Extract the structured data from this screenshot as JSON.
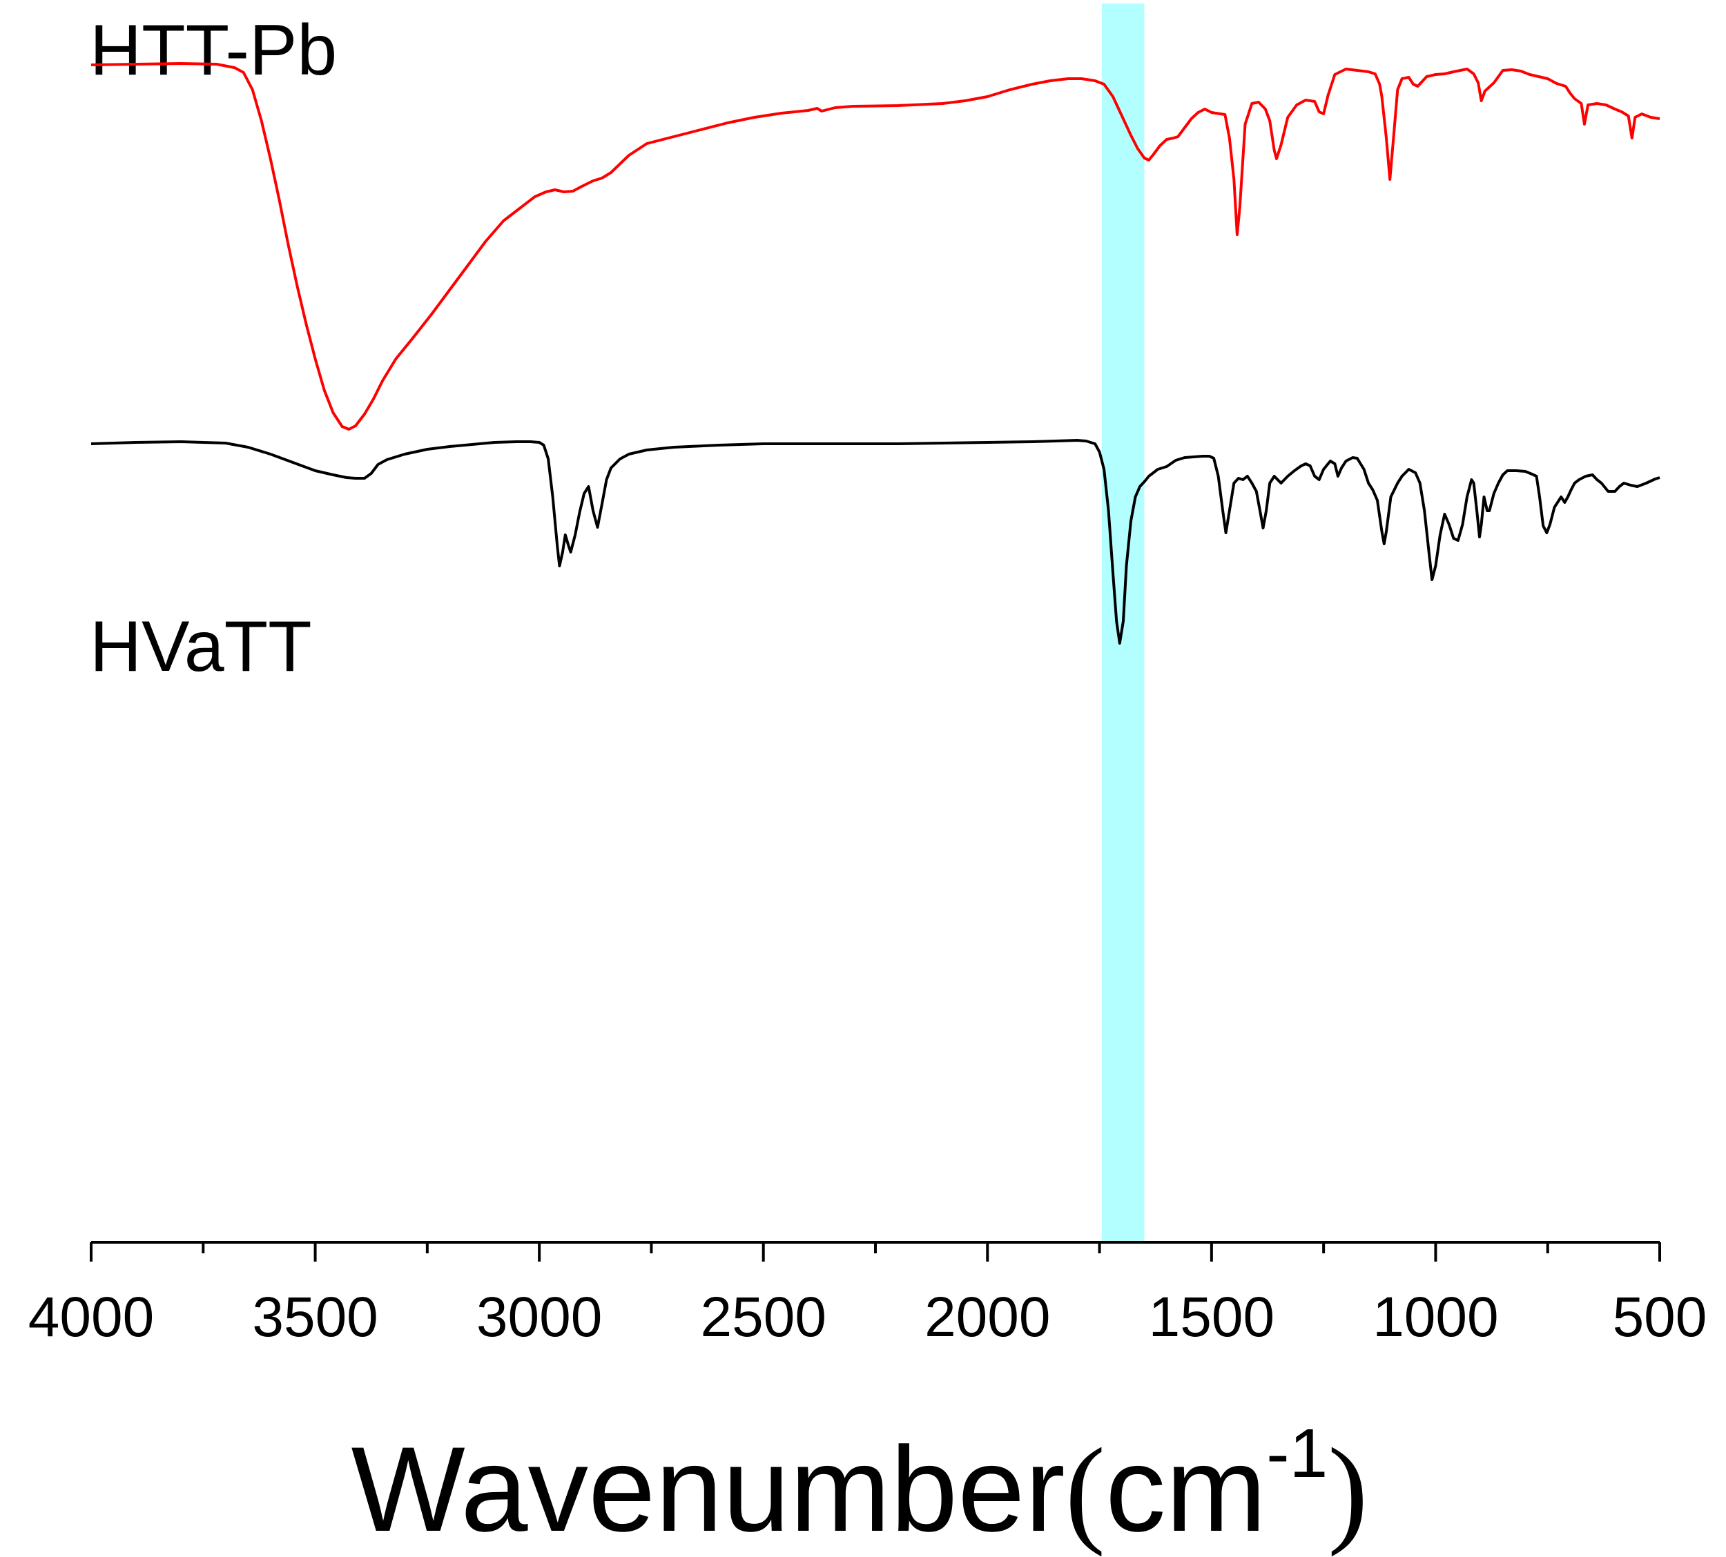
{
  "chart_data": {
    "type": "line",
    "title": "",
    "xlabel": "Wavenumber",
    "xlabel_paren_open": "(",
    "xlabel_unit": "cm",
    "xlabel_exponent": "-1",
    "xlabel_paren_close": ")",
    "ylabel": "",
    "xlim": [
      4000,
      500
    ],
    "x_ticks": [
      4000,
      3500,
      3000,
      2500,
      2000,
      1500,
      1000,
      500
    ],
    "x_tick_labels": [
      "4000",
      "3500",
      "3000",
      "2500",
      "2000",
      "1500",
      "1000",
      "500"
    ],
    "highlight_band": {
      "x_from": 1745,
      "x_to": 1650,
      "color": "#b3ffff"
    },
    "series": [
      {
        "name": "HTT-Pb",
        "color": "#ff0000",
        "points": [
          [
            4000,
            94
          ],
          [
            3900,
            93
          ],
          [
            3800,
            92
          ],
          [
            3720,
            93
          ],
          [
            3680,
            98
          ],
          [
            3660,
            105
          ],
          [
            3640,
            130
          ],
          [
            3620,
            175
          ],
          [
            3600,
            230
          ],
          [
            3580,
            290
          ],
          [
            3560,
            355
          ],
          [
            3540,
            415
          ],
          [
            3520,
            470
          ],
          [
            3500,
            520
          ],
          [
            3480,
            565
          ],
          [
            3460,
            598
          ],
          [
            3440,
            618
          ],
          [
            3425,
            622
          ],
          [
            3410,
            617
          ],
          [
            3390,
            600
          ],
          [
            3370,
            578
          ],
          [
            3350,
            552
          ],
          [
            3320,
            520
          ],
          [
            3280,
            488
          ],
          [
            3240,
            455
          ],
          [
            3200,
            420
          ],
          [
            3160,
            385
          ],
          [
            3120,
            350
          ],
          [
            3080,
            320
          ],
          [
            3040,
            300
          ],
          [
            3010,
            285
          ],
          [
            2985,
            278
          ],
          [
            2965,
            275
          ],
          [
            2945,
            278
          ],
          [
            2925,
            277
          ],
          [
            2905,
            270
          ],
          [
            2880,
            262
          ],
          [
            2860,
            258
          ],
          [
            2840,
            250
          ],
          [
            2800,
            225
          ],
          [
            2760,
            208
          ],
          [
            2700,
            198
          ],
          [
            2640,
            188
          ],
          [
            2580,
            178
          ],
          [
            2520,
            170
          ],
          [
            2460,
            164
          ],
          [
            2400,
            160
          ],
          [
            2380,
            157
          ],
          [
            2370,
            161
          ],
          [
            2340,
            156
          ],
          [
            2300,
            154
          ],
          [
            2200,
            153
          ],
          [
            2100,
            150
          ],
          [
            2050,
            146
          ],
          [
            2000,
            140
          ],
          [
            1950,
            130
          ],
          [
            1900,
            122
          ],
          [
            1860,
            117
          ],
          [
            1820,
            114
          ],
          [
            1790,
            114
          ],
          [
            1760,
            117
          ],
          [
            1740,
            122
          ],
          [
            1720,
            140
          ],
          [
            1700,
            168
          ],
          [
            1680,
            196
          ],
          [
            1665,
            215
          ],
          [
            1650,
            229
          ],
          [
            1640,
            232
          ],
          [
            1630,
            224
          ],
          [
            1615,
            211
          ],
          [
            1600,
            202
          ],
          [
            1585,
            200
          ],
          [
            1575,
            198
          ],
          [
            1560,
            185
          ],
          [
            1545,
            172
          ],
          [
            1530,
            163
          ],
          [
            1515,
            158
          ],
          [
            1500,
            163
          ],
          [
            1480,
            165
          ],
          [
            1470,
            166
          ],
          [
            1460,
            200
          ],
          [
            1450,
            260
          ],
          [
            1443,
            340
          ],
          [
            1437,
            300
          ],
          [
            1425,
            180
          ],
          [
            1410,
            150
          ],
          [
            1395,
            148
          ],
          [
            1380,
            158
          ],
          [
            1370,
            175
          ],
          [
            1360,
            218
          ],
          [
            1355,
            230
          ],
          [
            1345,
            210
          ],
          [
            1330,
            170
          ],
          [
            1310,
            152
          ],
          [
            1290,
            145
          ],
          [
            1270,
            147
          ],
          [
            1260,
            162
          ],
          [
            1250,
            165
          ],
          [
            1240,
            138
          ],
          [
            1225,
            108
          ],
          [
            1200,
            100
          ],
          [
            1175,
            102
          ],
          [
            1150,
            104
          ],
          [
            1135,
            107
          ],
          [
            1125,
            122
          ],
          [
            1120,
            140
          ],
          [
            1110,
            200
          ],
          [
            1102,
            260
          ],
          [
            1094,
            200
          ],
          [
            1085,
            130
          ],
          [
            1075,
            114
          ],
          [
            1060,
            112
          ],
          [
            1050,
            122
          ],
          [
            1040,
            125
          ],
          [
            1030,
            118
          ],
          [
            1020,
            111
          ],
          [
            1000,
            108
          ],
          [
            980,
            107
          ],
          [
            960,
            104
          ],
          [
            930,
            100
          ],
          [
            915,
            107
          ],
          [
            905,
            120
          ],
          [
            898,
            146
          ],
          [
            890,
            132
          ],
          [
            870,
            120
          ],
          [
            850,
            102
          ],
          [
            830,
            101
          ],
          [
            810,
            103
          ],
          [
            790,
            108
          ],
          [
            770,
            111
          ],
          [
            750,
            114
          ],
          [
            730,
            121
          ],
          [
            710,
            125
          ],
          [
            700,
            135
          ],
          [
            690,
            143
          ],
          [
            675,
            150
          ],
          [
            668,
            180
          ],
          [
            660,
            152
          ],
          [
            640,
            150
          ],
          [
            620,
            152
          ],
          [
            610,
            155
          ],
          [
            600,
            158
          ],
          [
            585,
            162
          ],
          [
            570,
            168
          ],
          [
            562,
            200
          ],
          [
            555,
            170
          ],
          [
            540,
            165
          ],
          [
            520,
            170
          ],
          [
            500,
            172
          ]
        ]
      },
      {
        "name": "HVaTT",
        "color": "#000000",
        "points": [
          [
            4000,
            643
          ],
          [
            3900,
            641
          ],
          [
            3800,
            640
          ],
          [
            3700,
            642
          ],
          [
            3650,
            648
          ],
          [
            3600,
            658
          ],
          [
            3550,
            670
          ],
          [
            3500,
            682
          ],
          [
            3460,
            688
          ],
          [
            3430,
            692
          ],
          [
            3410,
            693
          ],
          [
            3390,
            693
          ],
          [
            3375,
            686
          ],
          [
            3360,
            673
          ],
          [
            3340,
            666
          ],
          [
            3300,
            658
          ],
          [
            3250,
            651
          ],
          [
            3200,
            647
          ],
          [
            3150,
            644
          ],
          [
            3100,
            641
          ],
          [
            3050,
            640
          ],
          [
            3020,
            640
          ],
          [
            3000,
            641
          ],
          [
            2990,
            645
          ],
          [
            2980,
            665
          ],
          [
            2970,
            720
          ],
          [
            2960,
            790
          ],
          [
            2955,
            820
          ],
          [
            2948,
            800
          ],
          [
            2942,
            775
          ],
          [
            2935,
            790
          ],
          [
            2930,
            800
          ],
          [
            2920,
            775
          ],
          [
            2910,
            742
          ],
          [
            2900,
            715
          ],
          [
            2890,
            705
          ],
          [
            2880,
            740
          ],
          [
            2870,
            764
          ],
          [
            2860,
            730
          ],
          [
            2850,
            695
          ],
          [
            2840,
            678
          ],
          [
            2820,
            665
          ],
          [
            2800,
            658
          ],
          [
            2760,
            652
          ],
          [
            2700,
            648
          ],
          [
            2600,
            645
          ],
          [
            2500,
            643
          ],
          [
            2400,
            643
          ],
          [
            2300,
            643
          ],
          [
            2200,
            643
          ],
          [
            2100,
            642
          ],
          [
            2000,
            641
          ],
          [
            1900,
            640
          ],
          [
            1800,
            638
          ],
          [
            1780,
            639
          ],
          [
            1760,
            643
          ],
          [
            1750,
            655
          ],
          [
            1740,
            680
          ],
          [
            1730,
            740
          ],
          [
            1720,
            830
          ],
          [
            1712,
            900
          ],
          [
            1705,
            932
          ],
          [
            1697,
            900
          ],
          [
            1690,
            820
          ],
          [
            1680,
            755
          ],
          [
            1670,
            720
          ],
          [
            1660,
            705
          ],
          [
            1650,
            698
          ],
          [
            1640,
            690
          ],
          [
            1630,
            685
          ],
          [
            1620,
            680
          ],
          [
            1610,
            678
          ],
          [
            1600,
            676
          ],
          [
            1580,
            667
          ],
          [
            1560,
            663
          ],
          [
            1540,
            662
          ],
          [
            1520,
            661
          ],
          [
            1505,
            661
          ],
          [
            1495,
            664
          ],
          [
            1485,
            690
          ],
          [
            1475,
            740
          ],
          [
            1468,
            772
          ],
          [
            1460,
            740
          ],
          [
            1450,
            700
          ],
          [
            1440,
            693
          ],
          [
            1430,
            695
          ],
          [
            1420,
            690
          ],
          [
            1410,
            700
          ],
          [
            1400,
            712
          ],
          [
            1392,
            740
          ],
          [
            1385,
            765
          ],
          [
            1378,
            740
          ],
          [
            1370,
            700
          ],
          [
            1360,
            690
          ],
          [
            1345,
            700
          ],
          [
            1330,
            690
          ],
          [
            1315,
            682
          ],
          [
            1300,
            675
          ],
          [
            1290,
            672
          ],
          [
            1280,
            675
          ],
          [
            1270,
            690
          ],
          [
            1260,
            695
          ],
          [
            1250,
            680
          ],
          [
            1235,
            668
          ],
          [
            1225,
            672
          ],
          [
            1218,
            690
          ],
          [
            1210,
            678
          ],
          [
            1200,
            668
          ],
          [
            1185,
            663
          ],
          [
            1175,
            664
          ],
          [
            1160,
            680
          ],
          [
            1150,
            700
          ],
          [
            1140,
            710
          ],
          [
            1130,
            725
          ],
          [
            1120,
            770
          ],
          [
            1115,
            788
          ],
          [
            1110,
            770
          ],
          [
            1100,
            720
          ],
          [
            1085,
            700
          ],
          [
            1075,
            690
          ],
          [
            1060,
            680
          ],
          [
            1045,
            685
          ],
          [
            1035,
            700
          ],
          [
            1025,
            740
          ],
          [
            1015,
            800
          ],
          [
            1008,
            840
          ],
          [
            1000,
            820
          ],
          [
            990,
            775
          ],
          [
            980,
            745
          ],
          [
            970,
            760
          ],
          [
            960,
            780
          ],
          [
            950,
            783
          ],
          [
            940,
            760
          ],
          [
            930,
            720
          ],
          [
            920,
            695
          ],
          [
            915,
            700
          ],
          [
            908,
            740
          ],
          [
            902,
            778
          ],
          [
            898,
            760
          ],
          [
            892,
            720
          ],
          [
            885,
            740
          ],
          [
            880,
            740
          ],
          [
            870,
            715
          ],
          [
            860,
            700
          ],
          [
            850,
            688
          ],
          [
            840,
            682
          ],
          [
            820,
            682
          ],
          [
            800,
            683
          ],
          [
            785,
            687
          ],
          [
            775,
            690
          ],
          [
            768,
            720
          ],
          [
            760,
            762
          ],
          [
            752,
            772
          ],
          [
            745,
            760
          ],
          [
            735,
            735
          ],
          [
            728,
            728
          ],
          [
            720,
            720
          ],
          [
            712,
            728
          ],
          [
            705,
            720
          ],
          [
            698,
            710
          ],
          [
            690,
            700
          ],
          [
            680,
            695
          ],
          [
            665,
            690
          ],
          [
            650,
            688
          ],
          [
            640,
            695
          ],
          [
            630,
            700
          ],
          [
            615,
            712
          ],
          [
            600,
            712
          ],
          [
            590,
            705
          ],
          [
            580,
            700
          ],
          [
            565,
            703
          ],
          [
            550,
            705
          ],
          [
            530,
            700
          ],
          [
            510,
            694
          ],
          [
            500,
            692
          ]
        ]
      }
    ]
  }
}
